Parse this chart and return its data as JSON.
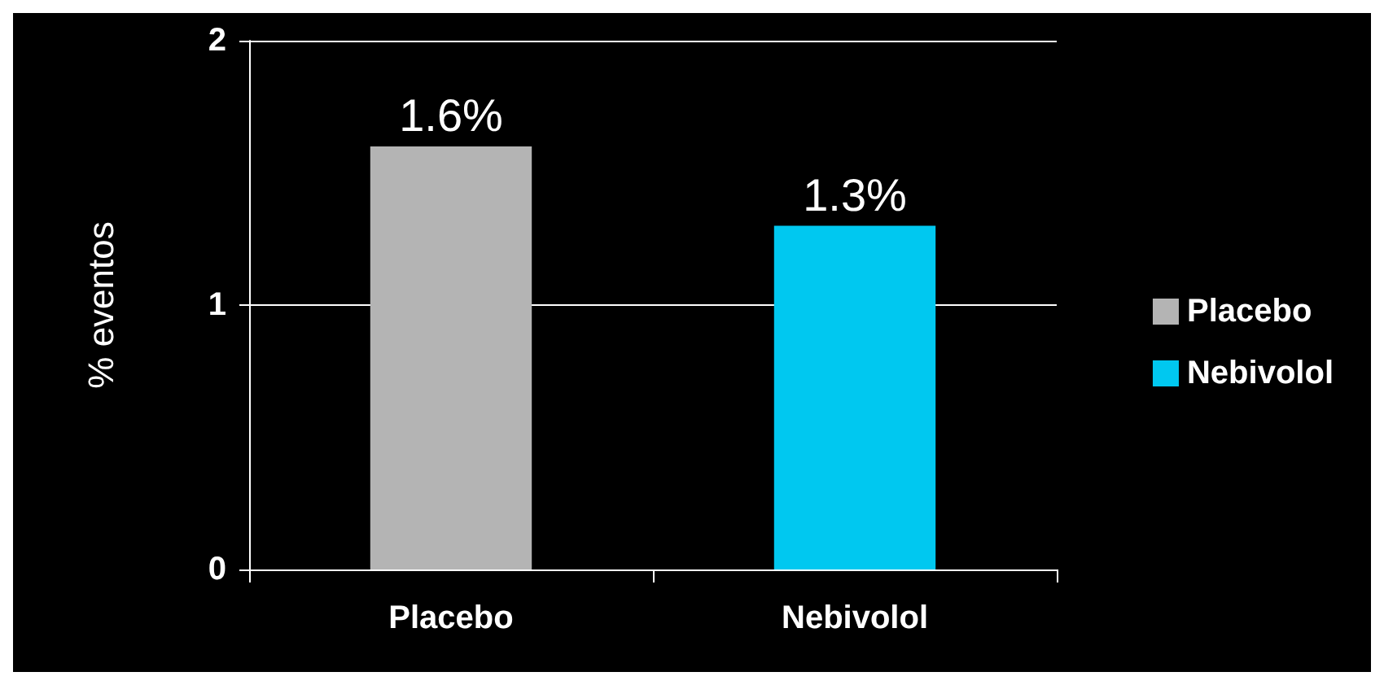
{
  "chart_data": {
    "type": "bar",
    "ylabel": "% eventos",
    "categories": [
      "Placebo",
      "Nebivolol"
    ],
    "series": [
      {
        "name": "Placebo",
        "color": "#b4b4b4",
        "values": [
          1.6,
          null
        ],
        "value_labels": [
          "1.6%",
          null
        ]
      },
      {
        "name": "Nebivolol",
        "color": "#00c8f0",
        "values": [
          null,
          1.3
        ],
        "value_labels": [
          null,
          "1.3%"
        ]
      }
    ],
    "ylim": [
      0,
      2
    ],
    "yticks": [
      0,
      1,
      2
    ],
    "grid": "y",
    "legend": "right"
  }
}
